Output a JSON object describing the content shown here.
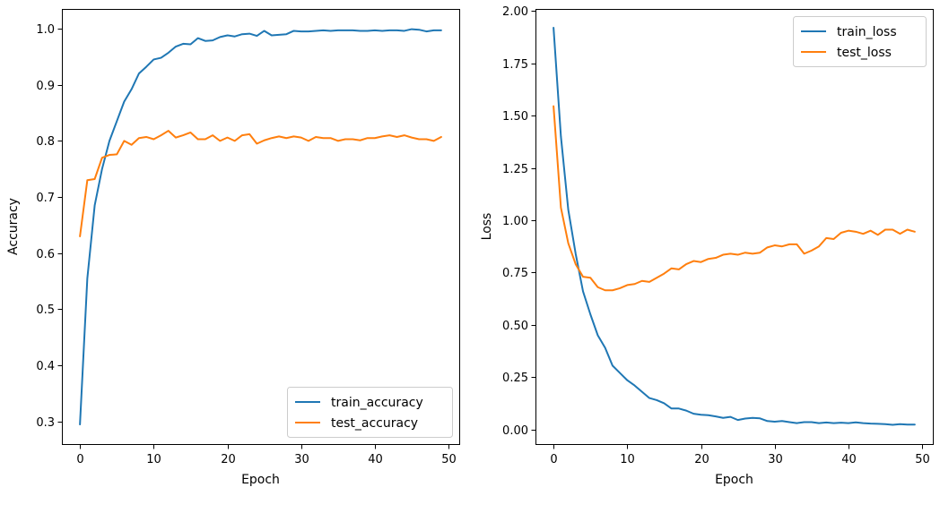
{
  "chart_data": [
    {
      "type": "line",
      "xlabel": "Epoch",
      "ylabel": "Accuracy",
      "xlim": [
        -2.45,
        51.45
      ],
      "ylim": [
        0.26,
        1.035
      ],
      "xticks": [
        0,
        10,
        20,
        30,
        40,
        50
      ],
      "yticks": [
        0.3,
        0.4,
        0.5,
        0.6,
        0.7,
        0.8,
        0.9,
        1.0
      ],
      "ytick_labels": [
        "0.3",
        "0.4",
        "0.5",
        "0.6",
        "0.7",
        "0.8",
        "0.9",
        "1.0"
      ],
      "legend": "lower-right",
      "grid": false,
      "series": [
        {
          "name": "train_accuracy",
          "color": "#1f77b4",
          "x": [
            0,
            1,
            2,
            3,
            4,
            5,
            6,
            7,
            8,
            9,
            10,
            11,
            12,
            13,
            14,
            15,
            16,
            17,
            18,
            19,
            20,
            21,
            22,
            23,
            24,
            25,
            26,
            27,
            28,
            29,
            30,
            31,
            32,
            33,
            34,
            35,
            36,
            37,
            38,
            39,
            40,
            41,
            42,
            43,
            44,
            45,
            46,
            47,
            48,
            49
          ],
          "values": [
            0.295,
            0.555,
            0.685,
            0.75,
            0.8,
            0.835,
            0.87,
            0.892,
            0.92,
            0.932,
            0.945,
            0.948,
            0.957,
            0.968,
            0.973,
            0.972,
            0.983,
            0.978,
            0.979,
            0.985,
            0.988,
            0.986,
            0.99,
            0.991,
            0.987,
            0.996,
            0.988,
            0.989,
            0.99,
            0.996,
            0.995,
            0.995,
            0.996,
            0.997,
            0.996,
            0.997,
            0.997,
            0.997,
            0.996,
            0.996,
            0.997,
            0.996,
            0.997,
            0.997,
            0.996,
            0.999,
            0.998,
            0.995,
            0.997,
            0.997
          ]
        },
        {
          "name": "test_accuracy",
          "color": "#ff7f0e",
          "x": [
            0,
            1,
            2,
            3,
            4,
            5,
            6,
            7,
            8,
            9,
            10,
            11,
            12,
            13,
            14,
            15,
            16,
            17,
            18,
            19,
            20,
            21,
            22,
            23,
            24,
            25,
            26,
            27,
            28,
            29,
            30,
            31,
            32,
            33,
            34,
            35,
            36,
            37,
            38,
            39,
            40,
            41,
            42,
            43,
            44,
            45,
            46,
            47,
            48,
            49
          ],
          "values": [
            0.63,
            0.73,
            0.732,
            0.77,
            0.775,
            0.776,
            0.8,
            0.793,
            0.805,
            0.807,
            0.803,
            0.81,
            0.818,
            0.806,
            0.81,
            0.815,
            0.803,
            0.803,
            0.81,
            0.8,
            0.806,
            0.8,
            0.81,
            0.812,
            0.795,
            0.801,
            0.805,
            0.808,
            0.805,
            0.808,
            0.806,
            0.8,
            0.807,
            0.805,
            0.805,
            0.8,
            0.803,
            0.803,
            0.801,
            0.805,
            0.805,
            0.808,
            0.81,
            0.807,
            0.81,
            0.806,
            0.803,
            0.803,
            0.8,
            0.807
          ]
        }
      ]
    },
    {
      "type": "line",
      "xlabel": "Epoch",
      "ylabel": "Loss",
      "xlim": [
        -2.45,
        51.45
      ],
      "ylim": [
        -0.07,
        2.01
      ],
      "xticks": [
        0,
        10,
        20,
        30,
        40,
        50
      ],
      "yticks": [
        0,
        0.25,
        0.5,
        0.75,
        1.0,
        1.25,
        1.5,
        1.75,
        2.0
      ],
      "ytick_labels": [
        "0.00",
        "0.25",
        "0.50",
        "0.75",
        "1.00",
        "1.25",
        "1.50",
        "1.75",
        "2.00"
      ],
      "legend": "upper-right",
      "grid": false,
      "series": [
        {
          "name": "train_loss",
          "color": "#1f77b4",
          "x": [
            0,
            1,
            2,
            3,
            4,
            5,
            6,
            7,
            8,
            9,
            10,
            11,
            12,
            13,
            14,
            15,
            16,
            17,
            18,
            19,
            20,
            21,
            22,
            23,
            24,
            25,
            26,
            27,
            28,
            29,
            30,
            31,
            32,
            33,
            34,
            35,
            36,
            37,
            38,
            39,
            40,
            41,
            42,
            43,
            44,
            45,
            46,
            47,
            48,
            49
          ],
          "values": [
            1.92,
            1.4,
            1.05,
            0.84,
            0.66,
            0.55,
            0.45,
            0.39,
            0.305,
            0.27,
            0.235,
            0.21,
            0.18,
            0.15,
            0.14,
            0.125,
            0.1,
            0.1,
            0.09,
            0.075,
            0.07,
            0.068,
            0.062,
            0.055,
            0.06,
            0.045,
            0.052,
            0.055,
            0.053,
            0.04,
            0.037,
            0.04,
            0.035,
            0.03,
            0.035,
            0.035,
            0.03,
            0.033,
            0.03,
            0.032,
            0.03,
            0.034,
            0.03,
            0.028,
            0.027,
            0.025,
            0.022,
            0.025,
            0.023,
            0.023
          ]
        },
        {
          "name": "test_loss",
          "color": "#ff7f0e",
          "x": [
            0,
            1,
            2,
            3,
            4,
            5,
            6,
            7,
            8,
            9,
            10,
            11,
            12,
            13,
            14,
            15,
            16,
            17,
            18,
            19,
            20,
            21,
            22,
            23,
            24,
            25,
            26,
            27,
            28,
            29,
            30,
            31,
            32,
            33,
            34,
            35,
            36,
            37,
            38,
            39,
            40,
            41,
            42,
            43,
            44,
            45,
            46,
            47,
            48,
            49
          ],
          "values": [
            1.545,
            1.06,
            0.89,
            0.79,
            0.73,
            0.725,
            0.68,
            0.665,
            0.665,
            0.675,
            0.69,
            0.695,
            0.71,
            0.705,
            0.725,
            0.745,
            0.77,
            0.765,
            0.79,
            0.805,
            0.8,
            0.815,
            0.82,
            0.835,
            0.84,
            0.835,
            0.845,
            0.84,
            0.845,
            0.87,
            0.88,
            0.875,
            0.885,
            0.885,
            0.84,
            0.855,
            0.875,
            0.915,
            0.91,
            0.94,
            0.95,
            0.945,
            0.935,
            0.95,
            0.93,
            0.955,
            0.955,
            0.935,
            0.955,
            0.945
          ]
        }
      ]
    }
  ]
}
